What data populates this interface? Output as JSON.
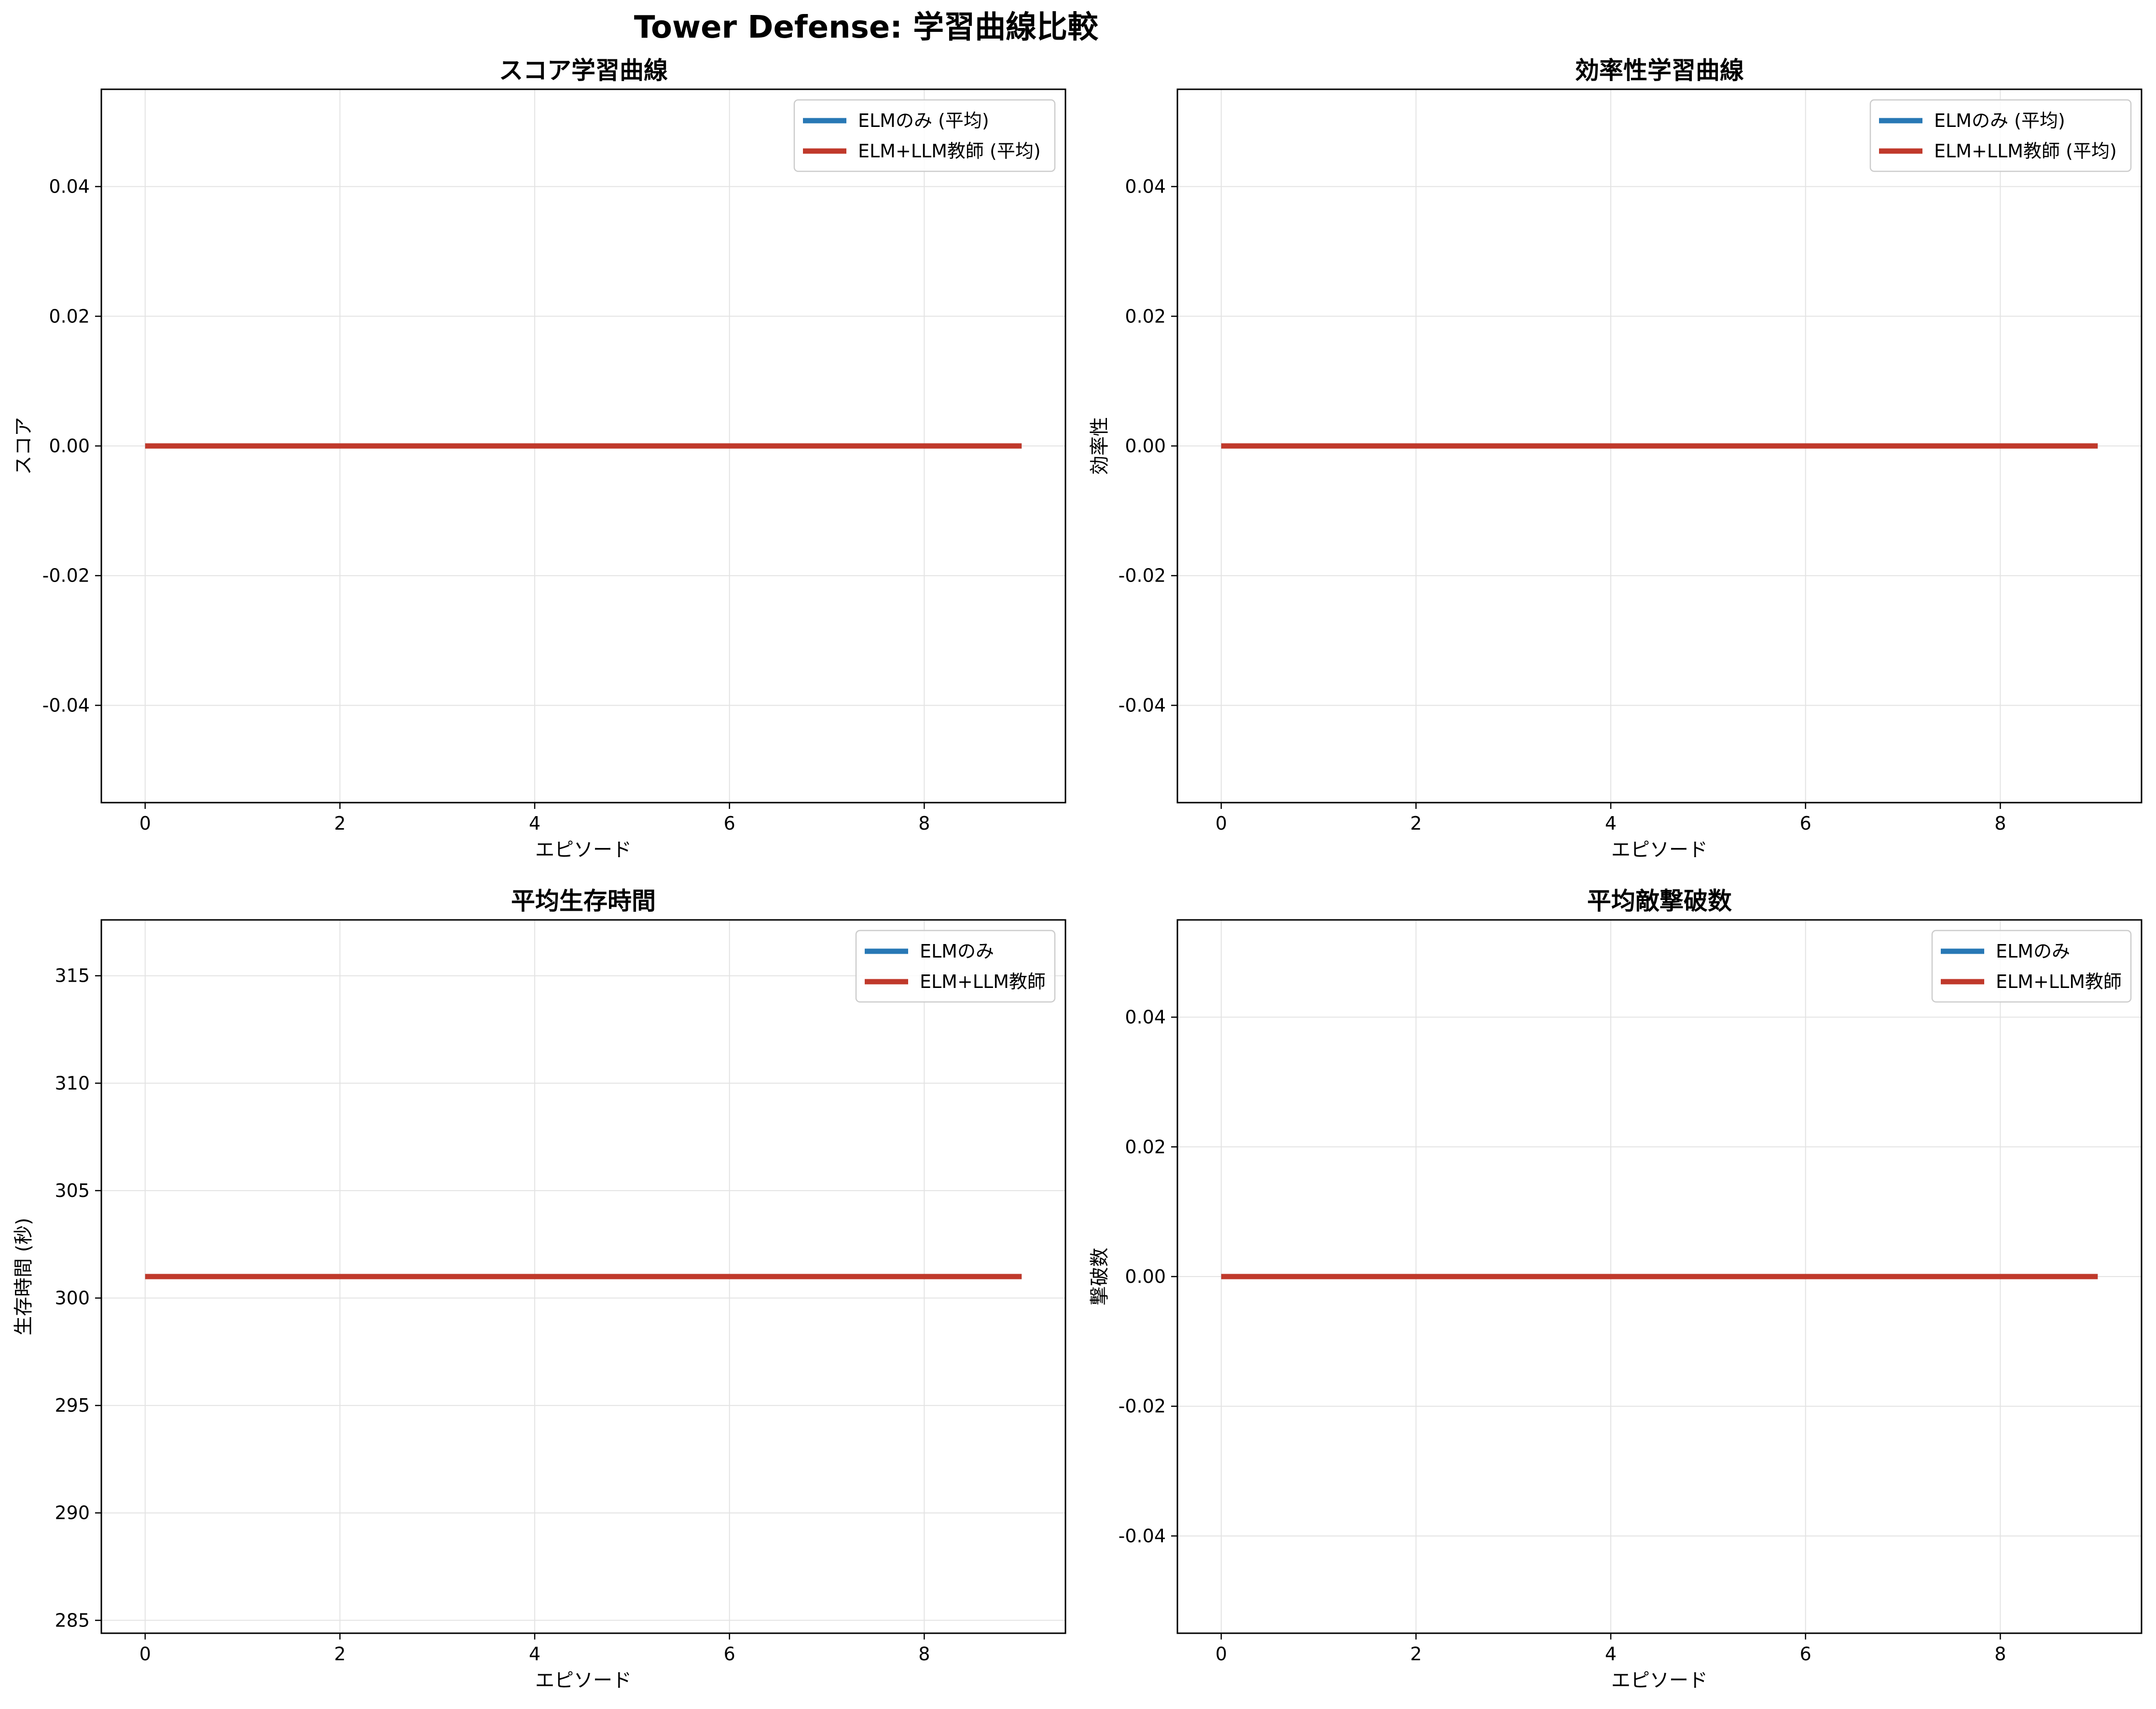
{
  "suptitle": "Tower Defense: 学習曲線比較",
  "colors": {
    "elm": "#2878b5",
    "elm_llm": "#c0392b",
    "grid": "#e3e3e3",
    "axes": "#000000"
  },
  "chart_data": [
    {
      "type": "line",
      "title": "スコア学習曲線",
      "xlabel": "エピソード",
      "ylabel": "スコア",
      "xlim": [
        -0.45,
        9.45
      ],
      "ylim": [
        -0.055,
        0.055
      ],
      "xticks": [
        0,
        2,
        4,
        6,
        8
      ],
      "xtick_labels": [
        "0",
        "2",
        "4",
        "6",
        "8"
      ],
      "yticks": [
        -0.04,
        -0.02,
        0.0,
        0.02,
        0.04
      ],
      "ytick_labels": [
        "-0.04",
        "-0.02",
        "0.00",
        "0.02",
        "0.04"
      ],
      "grid": true,
      "legend_position": "top-right",
      "x": [
        0,
        1,
        2,
        3,
        4,
        5,
        6,
        7,
        8,
        9
      ],
      "series": [
        {
          "name": "ELMのみ (平均)",
          "color": "#2878b5",
          "values": [
            0,
            0,
            0,
            0,
            0,
            0,
            0,
            0,
            0,
            0
          ]
        },
        {
          "name": "ELM+LLM教師 (平均)",
          "color": "#c0392b",
          "values": [
            0,
            0,
            0,
            0,
            0,
            0,
            0,
            0,
            0,
            0
          ]
        }
      ]
    },
    {
      "type": "line",
      "title": "効率性学習曲線",
      "xlabel": "エピソード",
      "ylabel": "効率性",
      "xlim": [
        -0.45,
        9.45
      ],
      "ylim": [
        -0.055,
        0.055
      ],
      "xticks": [
        0,
        2,
        4,
        6,
        8
      ],
      "xtick_labels": [
        "0",
        "2",
        "4",
        "6",
        "8"
      ],
      "yticks": [
        -0.04,
        -0.02,
        0.0,
        0.02,
        0.04
      ],
      "ytick_labels": [
        "-0.04",
        "-0.02",
        "0.00",
        "0.02",
        "0.04"
      ],
      "grid": true,
      "legend_position": "top-right",
      "x": [
        0,
        1,
        2,
        3,
        4,
        5,
        6,
        7,
        8,
        9
      ],
      "series": [
        {
          "name": "ELMのみ (平均)",
          "color": "#2878b5",
          "values": [
            0,
            0,
            0,
            0,
            0,
            0,
            0,
            0,
            0,
            0
          ]
        },
        {
          "name": "ELM+LLM教師 (平均)",
          "color": "#c0392b",
          "values": [
            0,
            0,
            0,
            0,
            0,
            0,
            0,
            0,
            0,
            0
          ]
        }
      ]
    },
    {
      "type": "line",
      "title": "平均生存時間",
      "xlabel": "エピソード",
      "ylabel": "生存時間 (秒)",
      "xlim": [
        -0.45,
        9.45
      ],
      "ylim": [
        284.4,
        317.6
      ],
      "xticks": [
        0,
        2,
        4,
        6,
        8
      ],
      "xtick_labels": [
        "0",
        "2",
        "4",
        "6",
        "8"
      ],
      "yticks": [
        285,
        290,
        295,
        300,
        305,
        310,
        315
      ],
      "ytick_labels": [
        "285",
        "290",
        "295",
        "300",
        "305",
        "310",
        "315"
      ],
      "grid": true,
      "legend_position": "top-right",
      "x": [
        0,
        1,
        2,
        3,
        4,
        5,
        6,
        7,
        8,
        9
      ],
      "series": [
        {
          "name": "ELMのみ",
          "color": "#2878b5",
          "values": [
            301,
            301,
            301,
            301,
            301,
            301,
            301,
            301,
            301,
            301
          ]
        },
        {
          "name": "ELM+LLM教師",
          "color": "#c0392b",
          "values": [
            301,
            301,
            301,
            301,
            301,
            301,
            301,
            301,
            301,
            301
          ]
        }
      ]
    },
    {
      "type": "line",
      "title": "平均敵撃破数",
      "xlabel": "エピソード",
      "ylabel": "撃破数",
      "xlim": [
        -0.45,
        9.45
      ],
      "ylim": [
        -0.055,
        0.055
      ],
      "xticks": [
        0,
        2,
        4,
        6,
        8
      ],
      "xtick_labels": [
        "0",
        "2",
        "4",
        "6",
        "8"
      ],
      "yticks": [
        -0.04,
        -0.02,
        0.0,
        0.02,
        0.04
      ],
      "ytick_labels": [
        "-0.04",
        "-0.02",
        "0.00",
        "0.02",
        "0.04"
      ],
      "grid": true,
      "legend_position": "top-right",
      "x": [
        0,
        1,
        2,
        3,
        4,
        5,
        6,
        7,
        8,
        9
      ],
      "series": [
        {
          "name": "ELMのみ",
          "color": "#2878b5",
          "values": [
            0,
            0,
            0,
            0,
            0,
            0,
            0,
            0,
            0,
            0
          ]
        },
        {
          "name": "ELM+LLM教師",
          "color": "#c0392b",
          "values": [
            0,
            0,
            0,
            0,
            0,
            0,
            0,
            0,
            0,
            0
          ]
        }
      ]
    }
  ]
}
